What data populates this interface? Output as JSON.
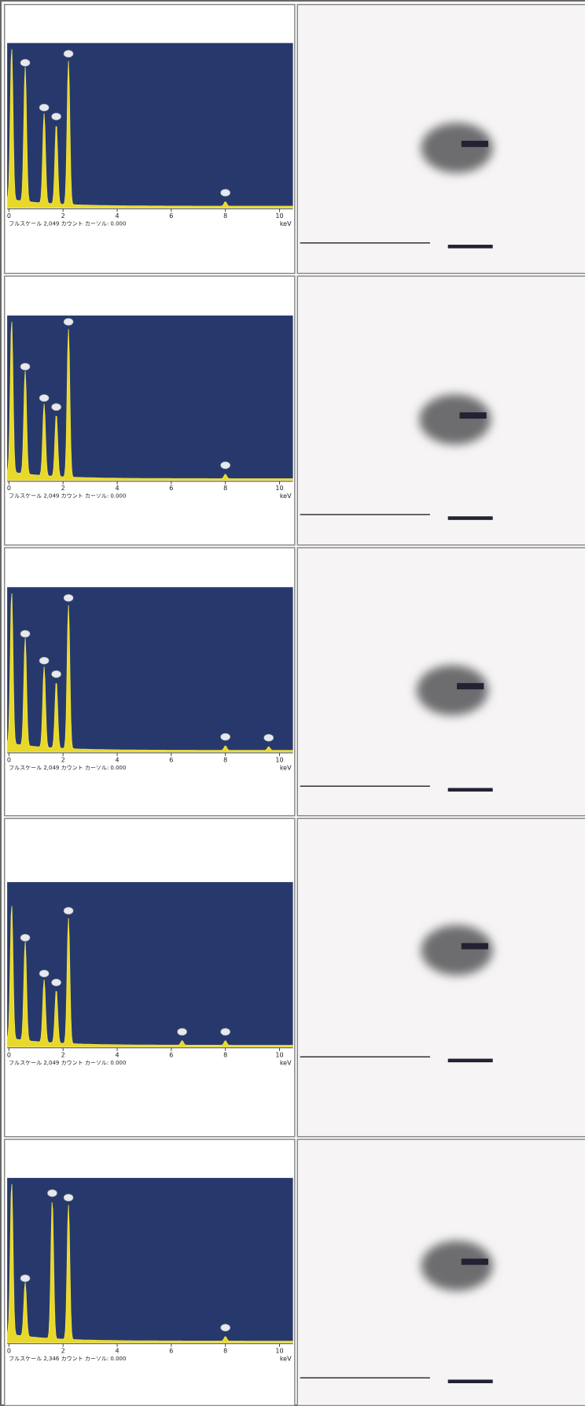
{
  "rows": [
    {
      "spectrum": {
        "xticks": [
          0,
          2,
          4,
          6,
          8,
          10
        ],
        "unit": "keV",
        "status": "フルスケール 2,049 カウント カーソル: 0.000"
      }
    },
    {
      "spectrum": {
        "xticks": [
          0,
          2,
          4,
          6,
          8,
          10
        ],
        "unit": "keV",
        "status": "フルスケール 2,049 カウント カーソル: 0.000"
      }
    },
    {
      "spectrum": {
        "xticks": [
          0,
          2,
          4,
          6,
          8,
          10
        ],
        "unit": "keV",
        "status": "フルスケール 2,049 カウント カーソル: 0.000"
      }
    },
    {
      "spectrum": {
        "xticks": [
          0,
          2,
          4,
          6,
          8,
          10
        ],
        "unit": "keV",
        "status": "フルスケール 2,049 カウント カーソル: 0.000"
      }
    },
    {
      "spectrum": {
        "xticks": [
          0,
          2,
          4,
          6,
          8,
          10
        ],
        "unit": "keV",
        "status": "フルスケール 2,346 カウント カーソル: 0.000"
      }
    }
  ]
}
